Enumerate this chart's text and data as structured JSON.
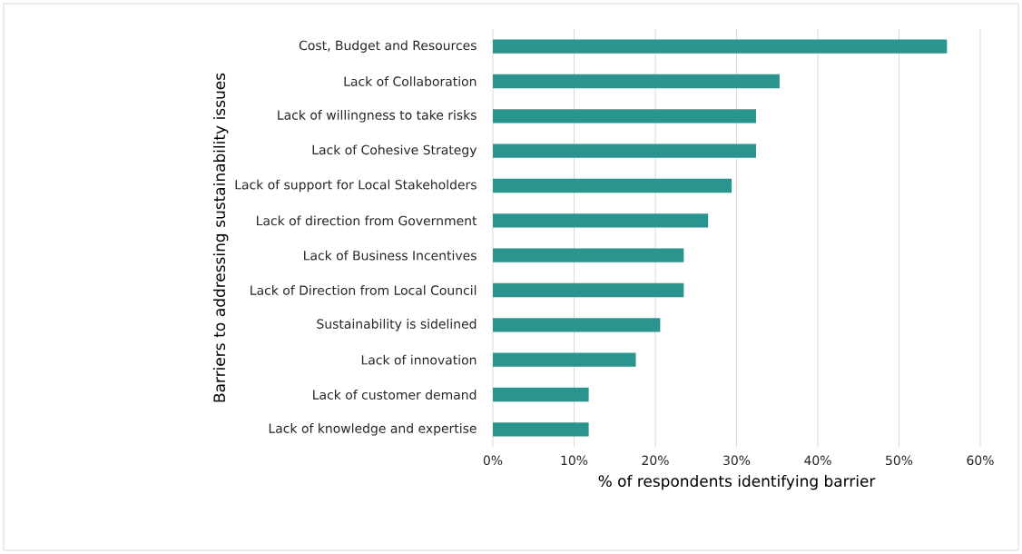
{
  "chart_data": {
    "type": "bar",
    "orientation": "horizontal",
    "xlabel": "% of respondents identifying barrier",
    "ylabel": "Barriers to addressing sustainability issues",
    "categories": [
      "Cost, Budget and Resources",
      "Lack of Collaboration",
      "Lack of willingness to take risks",
      "Lack of Cohesive Strategy",
      "Lack of support for Local Stakeholders",
      "Lack of direction from Government",
      "Lack of Business Incentives",
      "Lack of Direction from Local Council",
      "Sustainability is sidelined",
      "Lack of innovation",
      "Lack of customer demand",
      "Lack of knowledge and expertise"
    ],
    "values": [
      55.9,
      35.3,
      32.4,
      32.4,
      29.4,
      26.5,
      23.5,
      23.5,
      20.6,
      17.6,
      11.8,
      11.8
    ],
    "color": "#2a948f",
    "xlim": [
      0,
      60
    ],
    "xticks": [
      {
        "value": 0,
        "label": "0%"
      },
      {
        "value": 10,
        "label": "10%"
      },
      {
        "value": 20,
        "label": "20%"
      },
      {
        "value": 30,
        "label": "30%"
      },
      {
        "value": 40,
        "label": "40%"
      },
      {
        "value": 50,
        "label": "50%"
      },
      {
        "value": 60,
        "label": "60%"
      }
    ],
    "grid": "x"
  }
}
